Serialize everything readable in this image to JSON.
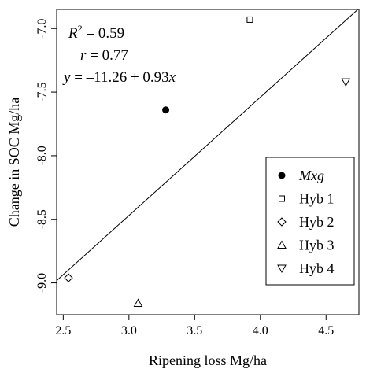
{
  "chart_data": {
    "type": "scatter",
    "xlabel": "Ripening loss Mg/ha",
    "ylabel": "Change in SOC Mg/ha",
    "xlim": [
      2.45,
      4.75
    ],
    "ylim": [
      -9.25,
      -6.85
    ],
    "xticks": [
      2.5,
      3.0,
      3.5,
      4.0,
      4.5
    ],
    "xtick_labels": [
      "2.5",
      "3.0",
      "3.5",
      "4.0",
      "4.5"
    ],
    "yticks": [
      -9.0,
      -8.5,
      -8.0,
      -7.5,
      -7.0
    ],
    "ytick_labels": [
      "-9.0",
      "-8.5",
      "-8.0",
      "-7.5",
      "-7.0"
    ],
    "grid": false,
    "legend_position": "lower-right",
    "series": [
      {
        "name": "Mxg",
        "italic": true,
        "marker": "filled-circle",
        "x": [
          3.28
        ],
        "y": [
          -7.64
        ]
      },
      {
        "name": "Hyb 1",
        "marker": "open-square",
        "x": [
          3.92
        ],
        "y": [
          -6.93
        ]
      },
      {
        "name": "Hyb 2",
        "marker": "open-diamond",
        "x": [
          2.54
        ],
        "y": [
          -8.96
        ]
      },
      {
        "name": "Hyb 3",
        "marker": "open-triangle-up",
        "x": [
          3.07
        ],
        "y": [
          -9.16
        ]
      },
      {
        "name": "Hyb 4",
        "marker": "open-triangle-down",
        "x": [
          4.65
        ],
        "y": [
          -7.42
        ]
      }
    ],
    "regression": {
      "intercept": -11.26,
      "slope": 0.93
    },
    "annotations": {
      "r2_lhs": "R",
      "r2_sup": "2",
      "r2_rhs": " = 0.59",
      "r_text": "r = 0.77",
      "eq_y": "y",
      "eq_mid": " = –11.26 + 0.93",
      "eq_x": "x"
    }
  }
}
